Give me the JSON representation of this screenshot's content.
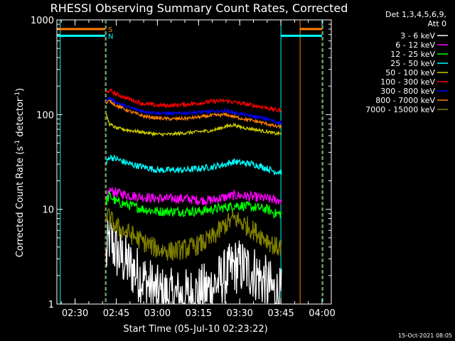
{
  "chart_data": {
    "type": "line",
    "title": "RHESSI Observing Summary Count Rates, Corrected",
    "xlabel": "Start Time (05-Jul-10 02:23:22)",
    "ylabel_prefix": "Corrected Count Rate (s",
    "ylabel_sup": "-1",
    "ylabel_mid": " detector",
    "ylabel_suffix": ")",
    "footer_stamp": "15-Oct-2021 08:05",
    "legend_header": [
      "Det 1,3,4,5,6,9,",
      "Att 0"
    ],
    "x_ticks": [
      "02:30",
      "02:45",
      "03:00",
      "03:15",
      "03:30",
      "03:45",
      "04:00"
    ],
    "x_tick_minutes": [
      30,
      45,
      60,
      75,
      90,
      105,
      120
    ],
    "y_ticks": [
      "1",
      "10",
      "100",
      "1000"
    ],
    "y_tick_values": [
      1,
      10,
      100,
      1000
    ],
    "ylog": true,
    "ylim": [
      1,
      1000
    ],
    "xlim_minutes": [
      23.37,
      123.37
    ],
    "colors": {
      "background": "#000000",
      "axes": "#ffffff",
      "saa": "#ff8000",
      "night": "#00ffff"
    },
    "flags": [
      {
        "letter": "S",
        "color": "#ff8000",
        "level": 800,
        "segments": [
          [
            23.4,
            41.0
          ],
          [
            112.0,
            120.0
          ]
        ]
      },
      {
        "letter": "N",
        "color": "#00ffff",
        "level": 680,
        "segments": [
          [
            23.4,
            41.0
          ],
          [
            105.0,
            120.0
          ]
        ]
      }
    ],
    "vertical_lines": [
      {
        "minute": 24.6,
        "color": "#00ffff",
        "dashed": false
      },
      {
        "minute": 41.0,
        "color": "#ff8000",
        "dashed": true
      },
      {
        "minute": 41.3,
        "color": "#00ffff",
        "dashed": true
      },
      {
        "minute": 105.0,
        "color": "#00ffff",
        "dashed": false
      },
      {
        "minute": 112.0,
        "color": "#ff8000",
        "dashed": false
      },
      {
        "minute": 120.0,
        "color": "#ff8000",
        "dashed": true
      },
      {
        "minute": 120.3,
        "color": "#00ffff",
        "dashed": true
      }
    ],
    "data_minutes": [
      41.3,
      42.5,
      45,
      50,
      55,
      60,
      65,
      70,
      75,
      80,
      85,
      88,
      90,
      95,
      100,
      103,
      105.2
    ],
    "series": [
      {
        "name": "3 - 6 keV",
        "color": "#ffffff",
        "values": [
          3.0,
          5.0,
          3.5,
          2.5,
          1.8,
          1.3,
          1.2,
          1.2,
          1.3,
          1.5,
          2.0,
          2.5,
          2.5,
          2.2,
          1.6,
          1.3,
          1.2
        ]
      },
      {
        "name": "6 - 12 keV",
        "color": "#ff00ff",
        "values": [
          12,
          16,
          15,
          14,
          13.5,
          13,
          13,
          13,
          12.5,
          12.5,
          13.5,
          14,
          14,
          13.5,
          13,
          12.5,
          12.5
        ]
      },
      {
        "name": "12 - 25 keV",
        "color": "#00ff00",
        "values": [
          12,
          14,
          12,
          11,
          10,
          9.5,
          9.5,
          9.5,
          9.5,
          10,
          10.5,
          11,
          11,
          10.5,
          10,
          9,
          9
        ]
      },
      {
        "name": "25 - 50 keV",
        "color": "#00ffff",
        "values": [
          30,
          36,
          34,
          30,
          28,
          26,
          26,
          26,
          27,
          28,
          30,
          32,
          31,
          30,
          27,
          25,
          25
        ]
      },
      {
        "name": "50 - 100 keV",
        "color": "#cccc00",
        "values": [
          100,
          80,
          72,
          68,
          65,
          62,
          62,
          64,
          66,
          68,
          75,
          78,
          74,
          70,
          66,
          63,
          63
        ]
      },
      {
        "name": "100 - 300 keV",
        "color": "#ff0000",
        "values": [
          170,
          180,
          165,
          145,
          130,
          125,
          125,
          128,
          132,
          138,
          140,
          135,
          132,
          125,
          118,
          112,
          110
        ]
      },
      {
        "name": "300 - 800 keV",
        "color": "#0000ff",
        "values": [
          140,
          150,
          135,
          118,
          108,
          104,
          102,
          104,
          106,
          108,
          110,
          105,
          102,
          96,
          90,
          84,
          82
        ]
      },
      {
        "name": "800 - 7000 keV",
        "color": "#ff8000",
        "values": [
          130,
          140,
          125,
          108,
          96,
          92,
          90,
          91,
          94,
          98,
          100,
          95,
          92,
          86,
          80,
          75,
          74
        ]
      },
      {
        "name": "7000 - 15000 keV",
        "color": "#808000",
        "values": [
          9,
          8,
          6.5,
          5.5,
          4.5,
          3.8,
          3.6,
          3.8,
          4.2,
          5.0,
          7.0,
          8.0,
          7.5,
          6.0,
          4.8,
          4.0,
          4.0
        ]
      }
    ]
  }
}
